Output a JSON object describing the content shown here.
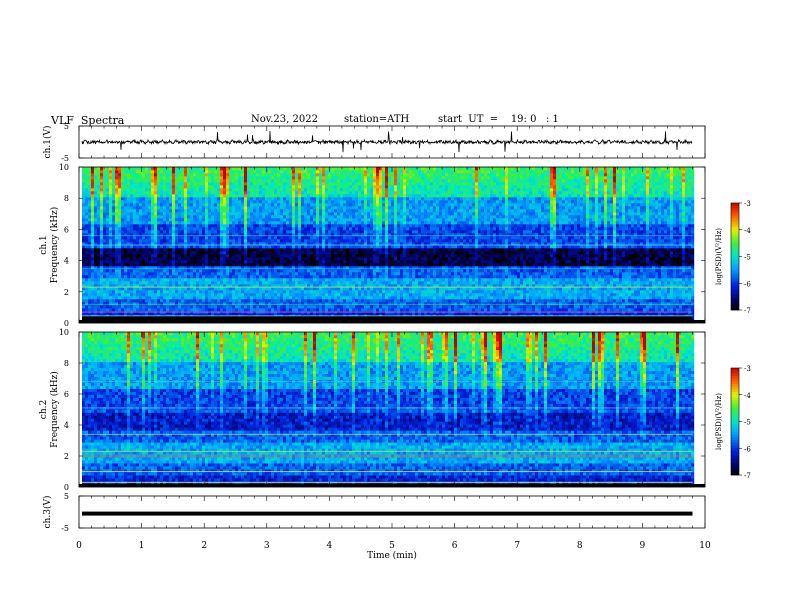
{
  "header": {
    "title": "VLF  Spectra",
    "date": "Nov.23, 2022",
    "station": "station=ATH",
    "start_ut": "start  UT  =    19: 0   : 1"
  },
  "chart_data": [
    {
      "type": "line",
      "name": "ch1-waveform",
      "ylabel": "ch.1(V)",
      "yticks": [
        5,
        -5
      ],
      "ylim": [
        -5,
        5
      ],
      "xlim": [
        0,
        10
      ],
      "trace_amplitude": 0.8,
      "color": "#000000"
    },
    {
      "type": "heatmap",
      "name": "ch1-spectrogram",
      "ylabel_top": "ch.1",
      "ylabel": "Frequency  (kHz)",
      "yticks": [
        0,
        2,
        4,
        6,
        8,
        10
      ],
      "ylim": [
        0,
        10
      ],
      "xlim": [
        0,
        9.8
      ],
      "colorbar": {
        "label": "log(PSD)(V²/Hz)",
        "ticks": [
          -3,
          -4,
          -5,
          -6,
          -7
        ],
        "range": [
          -7,
          -3
        ]
      }
    },
    {
      "type": "heatmap",
      "name": "ch2-spectrogram",
      "ylabel_top": "ch.2",
      "ylabel": "Frequency  (kHz)",
      "yticks": [
        0,
        2,
        4,
        6,
        8,
        10
      ],
      "ylim": [
        0,
        10
      ],
      "xlim": [
        0,
        9.8
      ],
      "colorbar": {
        "label": "log(PSD)(V²/Hz)",
        "ticks": [
          -3,
          -4,
          -5,
          -6,
          -7
        ],
        "range": [
          -7,
          -3
        ]
      }
    },
    {
      "type": "line",
      "name": "ch3-waveform",
      "ylabel": "ch.3(V)",
      "yticks": [
        5,
        -5
      ],
      "ylim": [
        -5,
        5
      ],
      "xlim": [
        0,
        10
      ],
      "trace_level": -0.5,
      "color": "#000000",
      "xlabel": "Time  (min)",
      "xticks": [
        0,
        1,
        2,
        3,
        4,
        5,
        6,
        7,
        8,
        9,
        10
      ]
    }
  ]
}
